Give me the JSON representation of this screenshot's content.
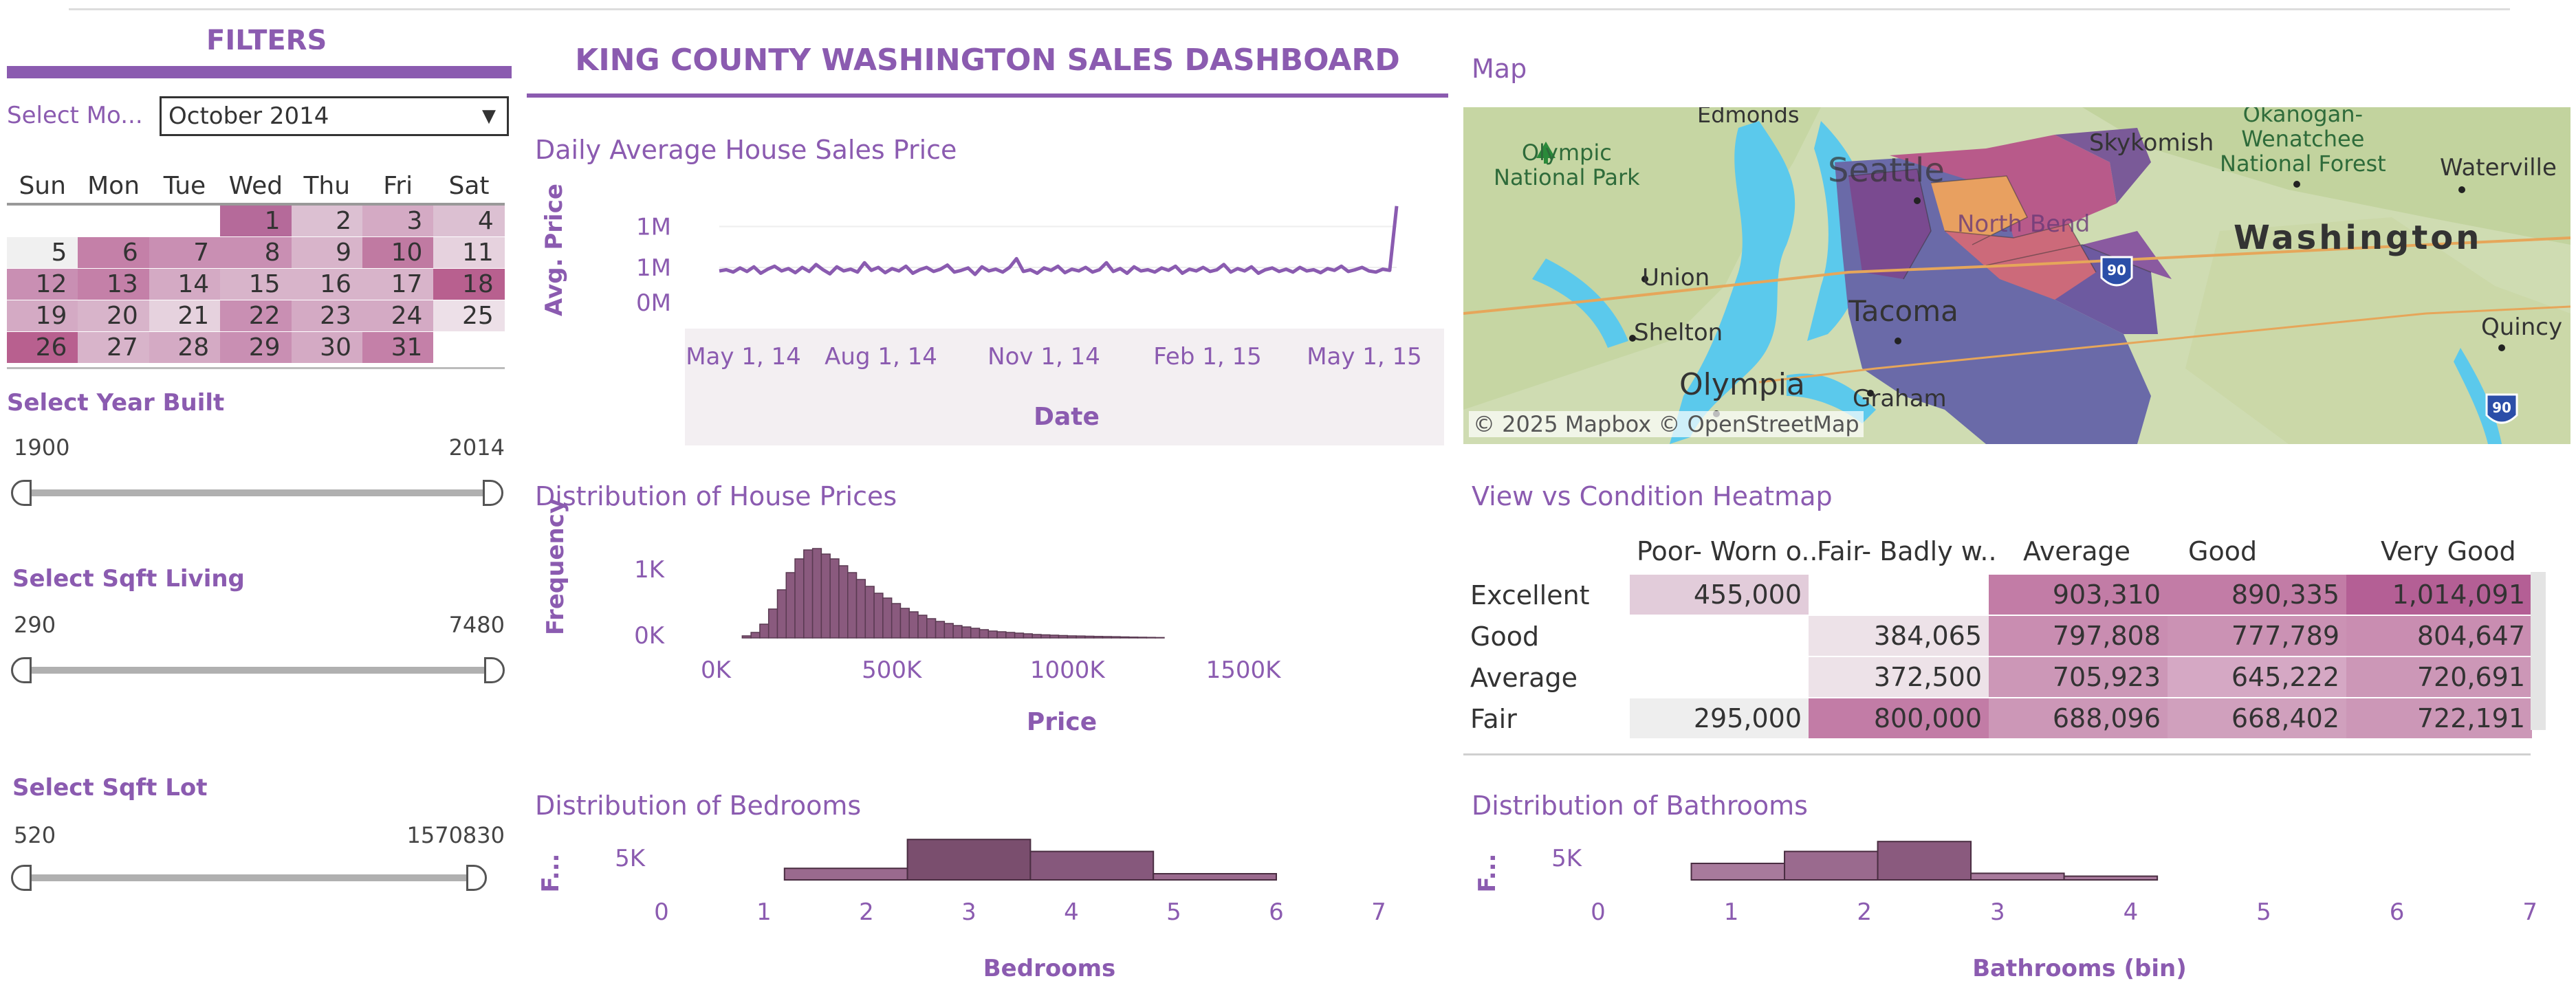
{
  "header": {
    "title": "KING COUNTY WASHINGTON SALES DASHBOARD"
  },
  "filters": {
    "title": "FILTERS",
    "month_label": "Select Mo...",
    "month_value": "October 2014",
    "calendar": {
      "days": [
        "Sun",
        "Mon",
        "Tue",
        "Wed",
        "Thu",
        "Fri",
        "Sat"
      ],
      "weeks": [
        [
          "",
          "",
          "",
          "1",
          "2",
          "3",
          "4"
        ],
        [
          "5",
          "6",
          "7",
          "8",
          "9",
          "10",
          "11"
        ],
        [
          "12",
          "13",
          "14",
          "15",
          "16",
          "17",
          "18"
        ],
        [
          "19",
          "20",
          "21",
          "22",
          "23",
          "24",
          "25"
        ],
        [
          "26",
          "27",
          "28",
          "29",
          "30",
          "31",
          ""
        ]
      ],
      "colors": [
        [
          "#ffffff",
          "#ffffff",
          "#ffffff",
          "#b56a9a",
          "#dcc0d2",
          "#d4aac4",
          "#dcc0d2"
        ],
        [
          "#f0f0f0",
          "#c480a8",
          "#c98fb3",
          "#c98fb3",
          "#d8b4ca",
          "#c07aa2",
          "#e6d2de"
        ],
        [
          "#c98fb3",
          "#c480a8",
          "#d4aac4",
          "#d8b4ca",
          "#d8b4ca",
          "#d8b4ca",
          "#b8608f"
        ],
        [
          "#d4aac4",
          "#d8b4ca",
          "#e6d2de",
          "#c98fb3",
          "#d4aac4",
          "#d4aac4",
          "#ede0e8"
        ],
        [
          "#b8608f",
          "#d8b4ca",
          "#d4aac4",
          "#c98fb3",
          "#d4aac4",
          "#c480a8",
          "#ffffff"
        ]
      ]
    },
    "year_built": {
      "label": "Select Year Built",
      "min": "1900",
      "max": "2014"
    },
    "sqft_living": {
      "label": "Select Sqft Living",
      "min": "290",
      "max": "7480"
    },
    "sqft_lot": {
      "label": "Select Sqft Lot",
      "min": "520",
      "max": "1570830"
    }
  },
  "daily_chart": {
    "title": "Daily Average  House Sales Price",
    "ylabel": "Avg. Price",
    "y_ticks": [
      "1M",
      "1M",
      "0M"
    ],
    "x_ticks": [
      "May 1, 14",
      "Aug 1, 14",
      "Nov 1, 14",
      "Feb 1, 15",
      "May 1, 15"
    ],
    "xlabel": "Date"
  },
  "map": {
    "title": "Map",
    "labels": [
      "Olympic National Park",
      "Edmonds",
      "Skykomish",
      "Okanogan-Wenatchee National Forest",
      "Waterville",
      "Seattle",
      "North Bend",
      "Washington",
      "Union",
      "Shelton",
      "Tacoma",
      "Olympia",
      "Graham",
      "Quincy"
    ],
    "attribution": "© 2025 Mapbox  © OpenStreetMap",
    "shields": [
      "90",
      "90"
    ]
  },
  "heatmap": {
    "title": "View vs Condition Heatmap",
    "columns": [
      "Poor- Worn o..",
      "Fair- Badly w..",
      "Average",
      "Good",
      "Very Good"
    ],
    "rows": [
      {
        "label": "Excellent",
        "values": [
          "455,000",
          "",
          "903,310",
          "890,335",
          "1,014,091"
        ],
        "colors": [
          "#e2ccda",
          "#ffffff",
          "#c27ca6",
          "#c27ca6",
          "#b45f95"
        ]
      },
      {
        "label": "Good",
        "values": [
          "",
          "384,065",
          "797,808",
          "777,789",
          "804,647"
        ],
        "colors": [
          "#ffffff",
          "#ede2e8",
          "#c98db1",
          "#cb92b4",
          "#c98db1"
        ]
      },
      {
        "label": "Average",
        "values": [
          "",
          "372,500",
          "705,923",
          "645,222",
          "720,691"
        ],
        "colors": [
          "#ffffff",
          "#ede2e8",
          "#cc97b7",
          "#d5a8c4",
          "#cc97b7"
        ]
      },
      {
        "label": "Fair",
        "values": [
          "295,000",
          "800,000",
          "688,096",
          "668,402",
          "722,191"
        ],
        "colors": [
          "#eeeeee",
          "#c27ca6",
          "#cc97b7",
          "#d0a0bd",
          "#cc97b7"
        ]
      }
    ]
  },
  "price_dist": {
    "title": "Distribution of House Prices",
    "ylabel": "Frequency",
    "y_ticks": [
      "1K",
      "0K"
    ],
    "x_ticks": [
      "0K",
      "500K",
      "1000K",
      "1500K"
    ],
    "xlabel": "Price"
  },
  "bedrooms": {
    "title": "Distribution of Bedrooms",
    "ylabel": "F...",
    "y_tick": "5K",
    "x_ticks": [
      "0",
      "1",
      "2",
      "3",
      "4",
      "5",
      "6",
      "7"
    ],
    "xlabel": "Bedrooms"
  },
  "bathrooms": {
    "title": "Distribution of Bathrooms",
    "ylabel": "F...",
    "y_tick": "5K",
    "x_ticks": [
      "0",
      "1",
      "2",
      "3",
      "4",
      "5",
      "6",
      "7"
    ],
    "xlabel": "Bathrooms (bin)"
  },
  "chart_data": [
    {
      "type": "line",
      "title": "Daily Average  House Sales Price",
      "xlabel": "Date",
      "ylabel": "Avg. Price",
      "x_range": [
        "2014-05-01",
        "2015-05-27"
      ],
      "ylim": [
        0,
        2000000
      ],
      "series": [
        {
          "values": [
            540000,
            560000,
            520000,
            590000,
            530000,
            610000,
            500000,
            570000,
            620000,
            540000,
            580000,
            510000,
            600000,
            530000,
            650000,
            560000,
            490000,
            610000,
            540000,
            570000,
            520000,
            680000,
            550000,
            600000,
            510000,
            580000,
            540000,
            620000,
            500000,
            560000,
            600000,
            530000,
            570000,
            640000,
            520000,
            550000,
            590000,
            480000,
            610000,
            540000,
            570000,
            520000,
            600000,
            750000,
            530000,
            560000,
            500000,
            590000,
            550000,
            620000,
            510000,
            570000,
            540000,
            600000,
            520000,
            560000,
            680000,
            530000,
            580000,
            500000,
            610000,
            540000,
            560000,
            520000,
            590000,
            550000,
            620000,
            500000,
            570000,
            540000,
            600000,
            530000,
            560000,
            650000,
            520000,
            580000,
            540000,
            610000,
            500000,
            560000,
            590000,
            530000,
            570000,
            520000,
            600000,
            540000,
            560000,
            510000,
            580000,
            550000,
            620000,
            530000,
            560000,
            600000,
            540000,
            520000,
            570000,
            550000,
            1650000
          ]
        }
      ]
    },
    {
      "type": "bar",
      "title": "Distribution of House Prices",
      "xlabel": "Price",
      "ylabel": "Frequency",
      "bin_width": 25000,
      "bin_start": 75000,
      "values": [
        30,
        80,
        200,
        420,
        700,
        950,
        1150,
        1280,
        1300,
        1220,
        1150,
        1050,
        950,
        850,
        750,
        650,
        580,
        500,
        430,
        380,
        330,
        280,
        240,
        210,
        180,
        160,
        140,
        120,
        100,
        90,
        80,
        70,
        60,
        50,
        45,
        40,
        35,
        30,
        28,
        25,
        22,
        20,
        18,
        15,
        12,
        10,
        8,
        6
      ],
      "xlim": [
        0,
        1700000
      ]
    },
    {
      "type": "bar",
      "title": "Distribution of Bedrooms",
      "xlabel": "Bedrooms",
      "ylabel": "F...",
      "categories": [
        "1.2–2.4",
        "2.4–3.6",
        "3.6–4.8",
        "4.8–6.0"
      ],
      "values": [
        2800,
        9800,
        6900,
        1500
      ],
      "xlim": [
        0,
        7
      ],
      "colors": [
        "#9a6a8e",
        "#7a4e6e",
        "#86587c",
        "#9a6a8e"
      ]
    },
    {
      "type": "bar",
      "title": "Distribution of Bathrooms",
      "xlabel": "Bathrooms (bin)",
      "ylabel": "F...",
      "categories": [
        "0.7–1.4",
        "1.4–2.1",
        "2.1–2.8",
        "2.8–3.5",
        "3.5–4.2"
      ],
      "values": [
        4000,
        6900,
        9300,
        1600,
        900
      ],
      "xlim": [
        0,
        7
      ],
      "colors": [
        "#a87a9c",
        "#9a6a8e",
        "#8a5a7e",
        "#a87a9c",
        "#a87a9c"
      ]
    }
  ],
  "colors": {
    "accent": "#8b5bb0",
    "bar": "#8a5a7e",
    "line": "#8a5bb0"
  }
}
